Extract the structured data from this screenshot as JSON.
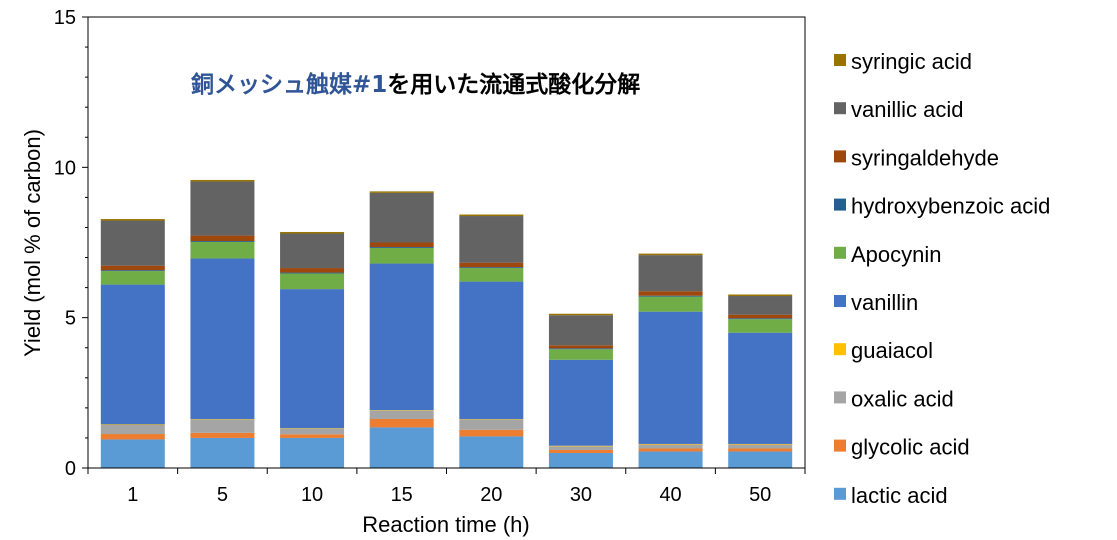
{
  "chart_data": {
    "type": "bar",
    "stacked": true,
    "title_part1": "銅メッシュ触媒#1",
    "title_part2": "を用いた流通式酸化分解",
    "title_colors": {
      "part1": "#2F5597",
      "part2": "#000000"
    },
    "xlabel": "Reaction time (h)",
    "ylabel": "Yield (mol % of carbon)",
    "ylim": [
      0,
      15
    ],
    "yticks": [
      "0",
      "5",
      "10",
      "15"
    ],
    "categories": [
      "1",
      "5",
      "10",
      "15",
      "20",
      "30",
      "40",
      "50"
    ],
    "grid": false,
    "legend_position": "right",
    "series": [
      {
        "name": "lactic acid",
        "color": "#5B9BD5",
        "values": [
          0.95,
          1.0,
          1.0,
          1.35,
          1.05,
          0.5,
          0.55,
          0.55
        ]
      },
      {
        "name": "glycolic acid",
        "color": "#ED7D31",
        "values": [
          0.18,
          0.17,
          0.12,
          0.28,
          0.22,
          0.1,
          0.1,
          0.1
        ]
      },
      {
        "name": "oxalic acid",
        "color": "#A5A5A5",
        "values": [
          0.3,
          0.43,
          0.18,
          0.27,
          0.33,
          0.12,
          0.13,
          0.13
        ]
      },
      {
        "name": "guaiacol",
        "color": "#FFC000",
        "values": [
          0.02,
          0.02,
          0.02,
          0.02,
          0.02,
          0.02,
          0.02,
          0.02
        ]
      },
      {
        "name": "vanillin",
        "color": "#4472C4",
        "values": [
          4.65,
          5.35,
          4.63,
          4.88,
          4.58,
          2.86,
          4.4,
          3.7
        ]
      },
      {
        "name": "Apocynin",
        "color": "#70AD47",
        "values": [
          0.45,
          0.55,
          0.52,
          0.52,
          0.45,
          0.35,
          0.5,
          0.45
        ]
      },
      {
        "name": "hydroxybenzoic acid",
        "color": "#255E91",
        "values": [
          0.03,
          0.03,
          0.03,
          0.03,
          0.03,
          0.03,
          0.03,
          0.03
        ]
      },
      {
        "name": "syringaldehyde",
        "color": "#9E480E",
        "values": [
          0.15,
          0.18,
          0.15,
          0.15,
          0.15,
          0.1,
          0.15,
          0.12
        ]
      },
      {
        "name": "vanillic acid",
        "color": "#636363",
        "values": [
          1.5,
          1.8,
          1.15,
          1.65,
          1.55,
          1.0,
          1.2,
          0.62
        ]
      },
      {
        "name": "syringic acid",
        "color": "#997300",
        "values": [
          0.05,
          0.05,
          0.05,
          0.05,
          0.05,
          0.05,
          0.05,
          0.05
        ]
      }
    ]
  }
}
